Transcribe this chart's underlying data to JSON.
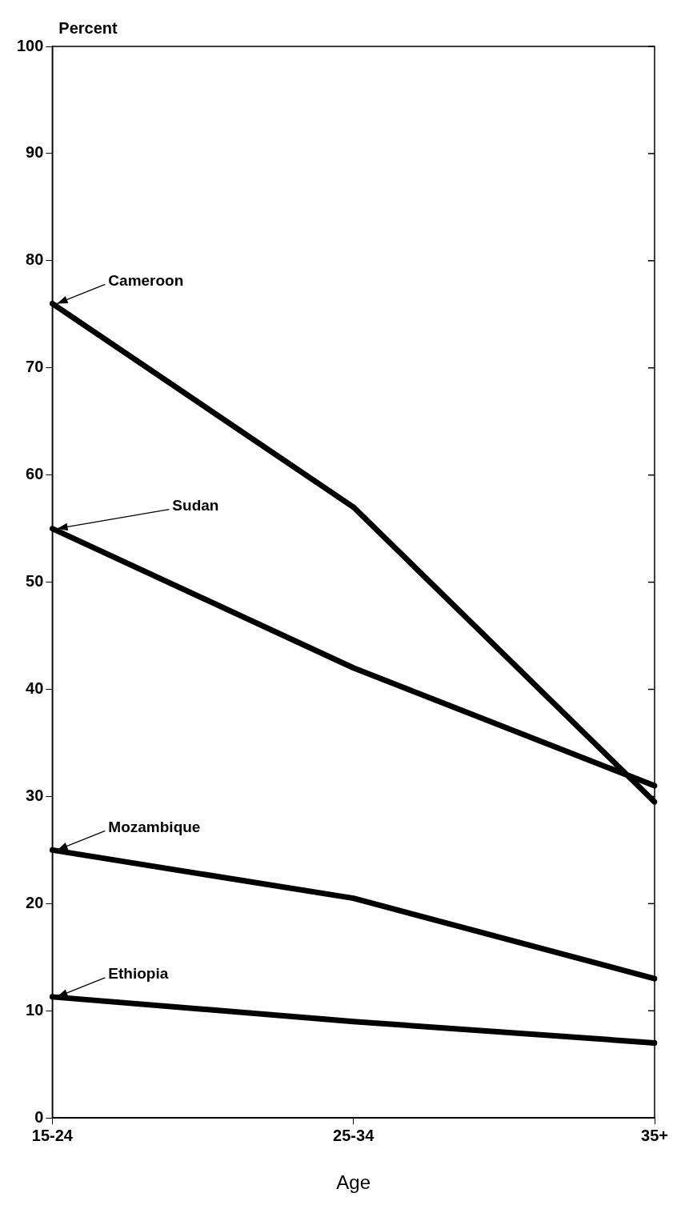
{
  "chart_data": {
    "type": "line",
    "xlabel": "Age",
    "ylabel": "Percent",
    "categories": [
      "15-24",
      "25-34",
      "35+"
    ],
    "series": [
      {
        "name": "Cameroon",
        "color": "#000000",
        "values": [
          76,
          57,
          29.5
        ]
      },
      {
        "name": "Sudan",
        "color": "#000000",
        "values": [
          55,
          42,
          31
        ]
      },
      {
        "name": "Mozambique",
        "color": "#000000",
        "values": [
          25,
          20.5,
          13
        ]
      },
      {
        "name": "Ethiopia",
        "color": "#000000",
        "values": [
          11.3,
          9,
          7
        ]
      }
    ],
    "ylim": [
      0,
      100
    ],
    "yticks": [
      0,
      10,
      20,
      30,
      40,
      50,
      60,
      70,
      80,
      90,
      100
    ],
    "grid": false,
    "legend": false,
    "marker": "none",
    "line_style": "solid"
  }
}
